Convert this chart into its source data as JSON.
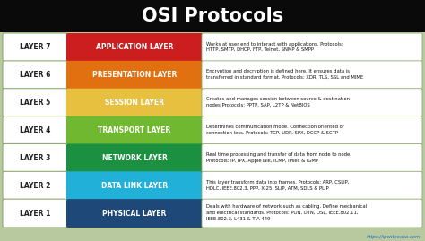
{
  "title": "OSI Protocols",
  "title_bg": "#0a0a0a",
  "title_color": "#ffffff",
  "bg_color": "#b8c9a0",
  "layers": [
    {
      "number": "LAYER 7",
      "name": "APPLICATION LAYER",
      "color": "#cc1e1e",
      "description": "Works at user end to interact with applications. Protocols:\nHTTP, SMTP, DHCP, FTP, Telnet, SNMP & SMPP"
    },
    {
      "number": "LAYER 6",
      "name": "PRESENTATION LAYER",
      "color": "#e07010",
      "description": "Encryption and decryption is defined here. It ensures data is\ntransferred in standard format. Protocols: XDR, TLS, SSL and MIME"
    },
    {
      "number": "LAYER 5",
      "name": "SESSION LAYER",
      "color": "#e8c040",
      "description": "Creates and manages session between source & destination\nnodes Protocols: PPTP, SAP, L2TP & NetBIOS"
    },
    {
      "number": "LAYER 4",
      "name": "TRANSPORT LAYER",
      "color": "#70b830",
      "description": "Determines communication mode. Connection oriented or\nconnection less. Protocols: TCP, UDP, SPX, DCCP & SCTP"
    },
    {
      "number": "LAYER 3",
      "name": "NETWORK LAYER",
      "color": "#1a9040",
      "description": "Real time processing and transfer of data from node to node.\nProtocols: IP, IPX, AppleTalk, ICMP, IPsec & IGMP"
    },
    {
      "number": "LAYER 2",
      "name": "DATA LINK LAYER",
      "color": "#20b0d8",
      "description": "This layer transform data into frames. Protocols: ARP, CSLIP,\nHDLC, IEEE.802.3, PPP, X-25, SLIP, ATM, SDLS & PLIP"
    },
    {
      "number": "LAYER 1",
      "name": "PHYSICAL LAYER",
      "color": "#1e4878",
      "description": "Deals with hardware of network such as cabling. Define mechanical\nand electrical standards. Protocols: PON, OTN, DSL, IEEE.802.11,\nIEEE.802.3, L431 & TIA 449"
    }
  ],
  "watermark": "https://ipwithease.com"
}
